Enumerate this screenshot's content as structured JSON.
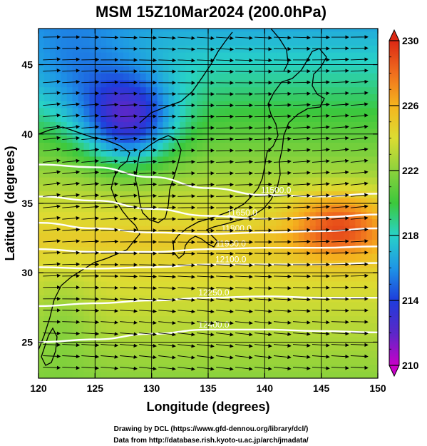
{
  "title": "MSM 15Z10Mar2024 (200.0hPa)",
  "credits": [
    "Drawing by DCL (https://www.gfd-dennou.org/library/dcl/)",
    "Data from http://database.rish.kyoto-u.ac.jp/arch/jmadata/"
  ],
  "chart_data": {
    "type": "heatmap",
    "xlabel": "Longitude (degrees)",
    "ylabel": "Latitude  (degrees)",
    "xlim": [
      120,
      150
    ],
    "ylim": [
      22.4,
      47.6
    ],
    "x_ticks": [
      120,
      125,
      130,
      135,
      140,
      145,
      150
    ],
    "y_ticks": [
      25,
      30,
      35,
      40,
      45
    ],
    "grid": true,
    "colorbar": {
      "range": [
        210,
        230
      ],
      "ticks": [
        210,
        214,
        218,
        222,
        226,
        230
      ],
      "placement": "right",
      "colormap": [
        "#c800c8",
        "#5a28c8",
        "#1e3cdc",
        "#1e96e6",
        "#28d2c8",
        "#3cc83c",
        "#8cd23c",
        "#dcdc32",
        "#f5b41e",
        "#f06e1e",
        "#dc2814"
      ]
    },
    "contours": [
      {
        "value": 11500.0,
        "label": "11500.0",
        "points": [
          [
            120,
            37.8
          ],
          [
            125,
            37.6
          ],
          [
            130,
            36.9
          ],
          [
            135,
            36.1
          ],
          [
            140,
            35.6
          ],
          [
            145,
            35.5
          ],
          [
            150,
            35.7
          ]
        ]
      },
      {
        "value": 11650.0,
        "label": "11650.0",
        "points": [
          [
            120,
            35.5
          ],
          [
            125,
            35.2
          ],
          [
            130,
            34.6
          ],
          [
            135,
            34.1
          ],
          [
            140,
            33.9
          ],
          [
            145,
            34.0
          ],
          [
            150,
            34.2
          ]
        ]
      },
      {
        "value": 11800.0,
        "label": "11800.0",
        "points": [
          [
            120,
            33.6
          ],
          [
            125,
            33.2
          ],
          [
            130,
            32.9
          ],
          [
            135,
            32.8
          ],
          [
            140,
            32.9
          ],
          [
            145,
            33.0
          ],
          [
            150,
            33.2
          ]
        ]
      },
      {
        "value": 11950.0,
        "label": "11950.0",
        "points": [
          [
            120,
            31.7
          ],
          [
            125,
            31.5
          ],
          [
            130,
            31.5
          ],
          [
            135,
            31.7
          ],
          [
            140,
            31.8
          ],
          [
            145,
            31.8
          ],
          [
            150,
            31.9
          ]
        ]
      },
      {
        "value": 12100.0,
        "label": "12100.0",
        "points": [
          [
            120,
            30.4
          ],
          [
            125,
            30.3
          ],
          [
            130,
            30.4
          ],
          [
            135,
            30.6
          ],
          [
            140,
            30.6
          ],
          [
            145,
            30.6
          ],
          [
            150,
            30.7
          ]
        ]
      },
      {
        "value": 12250.0,
        "label": "12250.0",
        "points": [
          [
            120,
            27.6
          ],
          [
            125,
            27.8
          ],
          [
            130,
            28.0
          ],
          [
            135,
            28.2
          ],
          [
            140,
            28.3
          ],
          [
            145,
            28.2
          ],
          [
            150,
            28.2
          ]
        ]
      },
      {
        "value": 12400.0,
        "label": "12400.0",
        "points": [
          [
            120,
            25.0
          ],
          [
            125,
            25.2
          ],
          [
            130,
            25.6
          ],
          [
            135,
            25.9
          ],
          [
            140,
            25.9
          ],
          [
            145,
            25.8
          ],
          [
            150,
            25.7
          ]
        ]
      }
    ],
    "wind": {
      "pattern": "westerly",
      "glyph": "arrow"
    }
  }
}
